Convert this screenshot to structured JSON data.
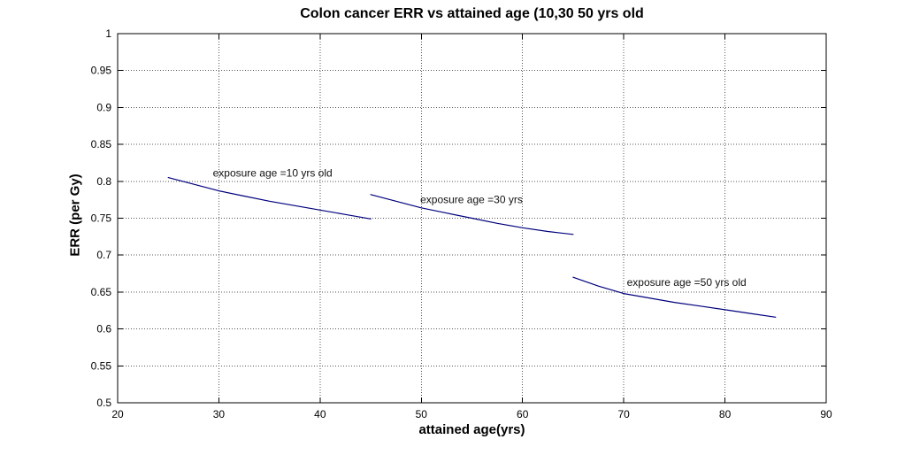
{
  "figure": {
    "background": "#ffffff"
  },
  "chart_data": {
    "type": "line",
    "title": "Colon cancer ERR vs attained age (10,30 50 yrs old",
    "xlabel": "attained age(yrs)",
    "ylabel": "ERR (per Gy)",
    "xlim": [
      20,
      90
    ],
    "ylim": [
      0.5,
      1
    ],
    "xticks": [
      20,
      30,
      40,
      50,
      60,
      70,
      80,
      90
    ],
    "xtick_labels": [
      "20",
      "30",
      "40",
      "50",
      "60",
      "70",
      "80",
      "90"
    ],
    "yticks": [
      0.5,
      0.55,
      0.6,
      0.65,
      0.7,
      0.75,
      0.8,
      0.85,
      0.9,
      0.95,
      1
    ],
    "ytick_labels": [
      "0.5",
      "0.55",
      "0.6",
      "0.65",
      "0.7",
      "0.75",
      "0.8",
      "0.85",
      "0.9",
      "0.95",
      "1"
    ],
    "grid": true,
    "grid_style": "dotted",
    "legend_position": "none",
    "line_color": "#00007d",
    "series": [
      {
        "name": "exposure age =10 yrs old",
        "x": [
          25,
          27.5,
          30,
          32.5,
          35,
          37.5,
          40,
          42.5,
          45
        ],
        "y": [
          0.805,
          0.796,
          0.787,
          0.78,
          0.773,
          0.767,
          0.761,
          0.755,
          0.749
        ],
        "label_anchor": {
          "x": 29.4,
          "y": 0.811
        }
      },
      {
        "name": "exposure age =30 yrs",
        "x": [
          45,
          47.5,
          50,
          52.5,
          55,
          57.5,
          60,
          62.5,
          65
        ],
        "y": [
          0.782,
          0.773,
          0.764,
          0.757,
          0.75,
          0.743,
          0.737,
          0.732,
          0.728
        ],
        "label_anchor": {
          "x": 49.9,
          "y": 0.775
        }
      },
      {
        "name": "exposure age =50 yrs old",
        "x": [
          65,
          67.5,
          70,
          72.5,
          75,
          77.5,
          80,
          82.5,
          85
        ],
        "y": [
          0.67,
          0.658,
          0.648,
          0.642,
          0.636,
          0.631,
          0.626,
          0.621,
          0.616
        ],
        "label_anchor": {
          "x": 70.3,
          "y": 0.663
        }
      }
    ]
  }
}
